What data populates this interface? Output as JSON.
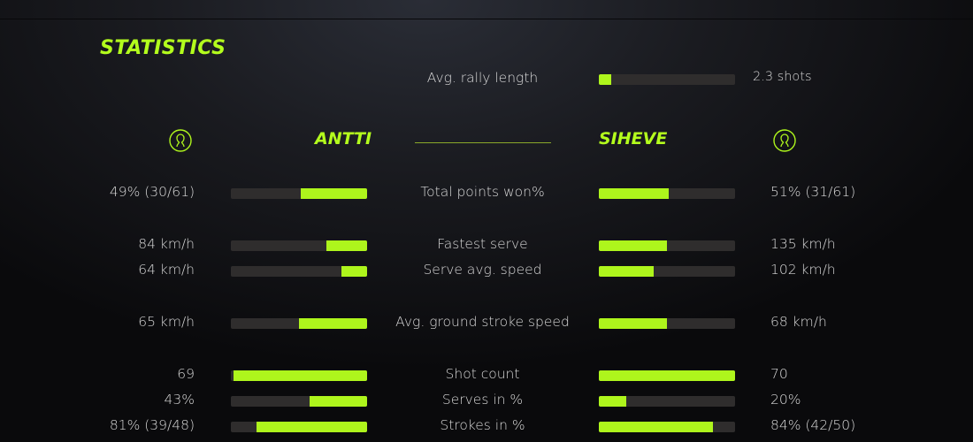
{
  "title": "STATISTICS",
  "accent_color": "#aef51c",
  "rally": {
    "label": "Avg. rally length",
    "value": "2.3 shots",
    "fraction": 0.09
  },
  "players": {
    "left": {
      "name": "ANTTI",
      "icon": "user-circle-icon"
    },
    "right": {
      "name": "SIHEVE",
      "icon": "user-circle-icon"
    }
  },
  "stats": [
    {
      "label": "Total points won%",
      "left": "49% (30/61)",
      "right": "51% (31/61)",
      "left_fraction": 0.49,
      "right_fraction": 0.51
    },
    {
      "label": "Fastest serve",
      "left": "84 km/h",
      "right": "135 km/h",
      "left_fraction": 0.3,
      "right_fraction": 0.5
    },
    {
      "label": "Serve avg. speed",
      "left": "64 km/h",
      "right": "102 km/h",
      "left_fraction": 0.19,
      "right_fraction": 0.4
    },
    {
      "label": "Avg. ground stroke speed",
      "left": "65 km/h",
      "right": "68 km/h",
      "left_fraction": 0.5,
      "right_fraction": 0.5
    },
    {
      "label": "Shot count",
      "left": "69",
      "right": "70",
      "left_fraction": 0.98,
      "right_fraction": 1.0
    },
    {
      "label": "Serves in %",
      "left": "43%",
      "right": "20%",
      "left_fraction": 0.42,
      "right_fraction": 0.2
    },
    {
      "label": "Strokes in %",
      "left": "81% (39/48)",
      "right": "84% (42/50)",
      "left_fraction": 0.81,
      "right_fraction": 0.84
    }
  ]
}
